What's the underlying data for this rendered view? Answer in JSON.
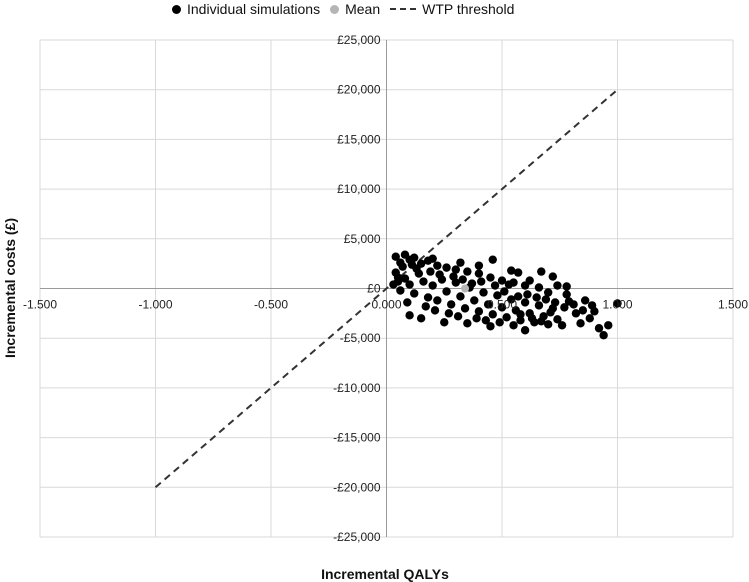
{
  "chart_data": {
    "type": "scatter",
    "xlabel": "Incremental QALYs",
    "ylabel": "Incremental costs (£)",
    "xlim": [
      -1.5,
      1.5
    ],
    "ylim": [
      -25000,
      25000
    ],
    "x_ticks": [
      -1.5,
      -1.0,
      -0.5,
      0.0,
      0.5,
      1.0,
      1.5
    ],
    "x_tick_labels": [
      "-1.500",
      "-1.000",
      "-0.500",
      "0.000",
      "0.500",
      "1.000",
      "1.500"
    ],
    "y_ticks": [
      25000,
      20000,
      15000,
      10000,
      5000,
      0,
      -5000,
      -10000,
      -15000,
      -20000,
      -25000
    ],
    "y_tick_labels": [
      "£25,000",
      "£20,000",
      "£15,000",
      "£10,000",
      "£5,000",
      "£0",
      "-£5,000",
      "-£10,000",
      "-£15,000",
      "-£20,000",
      "-£25,000"
    ],
    "grid": true,
    "legend_position": "top",
    "series": [
      {
        "name": "Individual simulations",
        "kind": "points",
        "color": "#000000",
        "points": [
          [
            0.04,
            3200
          ],
          [
            0.06,
            2600
          ],
          [
            0.08,
            3400
          ],
          [
            0.1,
            2900
          ],
          [
            0.12,
            3100
          ],
          [
            0.15,
            2500
          ],
          [
            0.18,
            2800
          ],
          [
            0.22,
            2300
          ],
          [
            0.26,
            2100
          ],
          [
            0.3,
            1900
          ],
          [
            0.35,
            1700
          ],
          [
            0.4,
            1500
          ],
          [
            0.45,
            1100
          ],
          [
            0.5,
            800
          ],
          [
            0.55,
            600
          ],
          [
            0.6,
            300
          ],
          [
            0.66,
            100
          ],
          [
            0.7,
            -400
          ],
          [
            0.46,
            2900
          ],
          [
            0.57,
            1600
          ],
          [
            0.67,
            1700
          ],
          [
            0.72,
            1200
          ],
          [
            0.78,
            200
          ],
          [
            0.04,
            1600
          ],
          [
            0.05,
            700
          ],
          [
            0.06,
            -200
          ],
          [
            0.08,
            1000
          ],
          [
            0.1,
            400
          ],
          [
            0.12,
            -500
          ],
          [
            0.14,
            1500
          ],
          [
            0.16,
            700
          ],
          [
            0.18,
            -900
          ],
          [
            0.2,
            300
          ],
          [
            0.22,
            -1200
          ],
          [
            0.24,
            900
          ],
          [
            0.26,
            -300
          ],
          [
            0.28,
            -1600
          ],
          [
            0.3,
            600
          ],
          [
            0.32,
            -800
          ],
          [
            0.34,
            -2000
          ],
          [
            0.36,
            100
          ],
          [
            0.38,
            -1200
          ],
          [
            0.4,
            -2300
          ],
          [
            0.42,
            -400
          ],
          [
            0.44,
            -1600
          ],
          [
            0.46,
            -2600
          ],
          [
            0.48,
            -700
          ],
          [
            0.5,
            -1900
          ],
          [
            0.52,
            -2900
          ],
          [
            0.54,
            -1100
          ],
          [
            0.56,
            -2200
          ],
          [
            0.58,
            -3200
          ],
          [
            0.6,
            -1400
          ],
          [
            0.62,
            -2500
          ],
          [
            0.64,
            -3400
          ],
          [
            0.66,
            -1700
          ],
          [
            0.68,
            -2800
          ],
          [
            0.7,
            -3600
          ],
          [
            0.72,
            -2000
          ],
          [
            0.74,
            -3100
          ],
          [
            0.76,
            -3700
          ],
          [
            0.79,
            -1300
          ],
          [
            0.82,
            -2500
          ],
          [
            0.84,
            -3500
          ],
          [
            0.86,
            -1200
          ],
          [
            0.88,
            -3000
          ],
          [
            0.9,
            -2300
          ],
          [
            0.92,
            -4000
          ],
          [
            0.94,
            -4700
          ],
          [
            0.96,
            -3700
          ],
          [
            1.0,
            -1500
          ],
          [
            0.6,
            -4200
          ],
          [
            0.45,
            -3800
          ],
          [
            0.35,
            -3500
          ],
          [
            0.25,
            -3400
          ],
          [
            0.15,
            -3000
          ],
          [
            0.1,
            -2700
          ],
          [
            0.55,
            -3700
          ],
          [
            0.78,
            -600
          ],
          [
            0.74,
            300
          ],
          [
            0.62,
            800
          ],
          [
            0.54,
            1800
          ],
          [
            0.32,
            2600
          ],
          [
            0.4,
            2300
          ],
          [
            0.2,
            3000
          ],
          [
            0.07,
            2200
          ],
          [
            0.09,
            -1400
          ],
          [
            0.13,
            2000
          ],
          [
            0.19,
            1700
          ],
          [
            0.23,
            1400
          ],
          [
            0.29,
            1200
          ],
          [
            0.33,
            900
          ],
          [
            0.37,
            500
          ],
          [
            0.41,
            700
          ],
          [
            0.47,
            300
          ],
          [
            0.51,
            -300
          ],
          [
            0.53,
            400
          ],
          [
            0.57,
            -800
          ],
          [
            0.61,
            -600
          ],
          [
            0.65,
            -900
          ],
          [
            0.69,
            -1100
          ],
          [
            0.73,
            -1400
          ],
          [
            0.77,
            -1900
          ],
          [
            0.81,
            -1600
          ],
          [
            0.85,
            -2200
          ],
          [
            0.89,
            -1700
          ],
          [
            0.03,
            400
          ],
          [
            0.05,
            1100
          ],
          [
            0.11,
            2400
          ],
          [
            0.17,
            -1800
          ],
          [
            0.21,
            -2200
          ],
          [
            0.27,
            -2500
          ],
          [
            0.31,
            -2800
          ],
          [
            0.39,
            -3000
          ],
          [
            0.43,
            -3200
          ],
          [
            0.49,
            -3400
          ],
          [
            0.58,
            -2600
          ],
          [
            0.63,
            -3000
          ],
          [
            0.67,
            -3300
          ],
          [
            0.71,
            -2400
          ]
        ]
      },
      {
        "name": "Mean",
        "kind": "points",
        "color": "#b5b5b5",
        "points": [
          [
            0.34,
            0
          ]
        ]
      },
      {
        "name": "WTP threshold",
        "kind": "dashed-line",
        "color": "#333333",
        "points": [
          [
            -1.0,
            -20000
          ],
          [
            1.0,
            20000
          ]
        ]
      }
    ]
  }
}
